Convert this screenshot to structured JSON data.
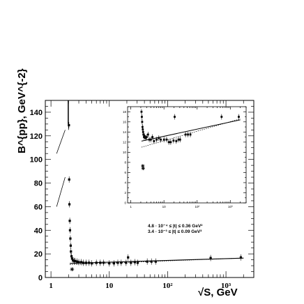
{
  "chart_data": [
    {
      "type": "scatter",
      "title": "",
      "ylabel": "B^{pp}, GeV^{-2}",
      "xlabel": "√S, GeV",
      "xscale": "log",
      "xlim": [
        0.8,
        3000
      ],
      "ylim": [
        0,
        150
      ],
      "y_ticks": [
        "0",
        "20",
        "40",
        "60",
        "80",
        "100",
        "120",
        "140"
      ],
      "x_ticks": [
        "1",
        "10",
        "10²",
        "10³"
      ],
      "grid": false,
      "legend_position": "lower-right (inside plot)",
      "series": [
        {
          "marker": "filled-square",
          "x": [
            2.03,
            2.05,
            2.07,
            2.1,
            2.12,
            2.15,
            2.18,
            2.2,
            2.25,
            2.3,
            2.4,
            2.5,
            2.6,
            2.8,
            3.0,
            3.3,
            3.6,
            4.0,
            4.5,
            5.0,
            6.0,
            7.0,
            8.0,
            10.0,
            12.0,
            14.0,
            16.0,
            19.4,
            21.0,
            23.5,
            27.4,
            30.6,
            44.7,
            52.8,
            62.5,
            546,
            1800
          ],
          "y": [
            129,
            83,
            62,
            48,
            40,
            33,
            27,
            22,
            18,
            16,
            14.5,
            14,
            14,
            13.5,
            13,
            13,
            12.5,
            12.5,
            12.5,
            12,
            12.5,
            12.5,
            12.5,
            12,
            12,
            12.5,
            12.5,
            12.5,
            17,
            12.5,
            13,
            12.5,
            13.5,
            13.5,
            13.5,
            16.5,
            17
          ]
        },
        {
          "marker": "asterisk",
          "x": [
            2.3
          ],
          "y": [
            7
          ]
        }
      ],
      "fits": [
        {
          "style": "solid",
          "x": [
            2.1,
            2000
          ],
          "y": [
            12.0,
            16.4
          ]
        },
        {
          "style": "dotted",
          "x": [
            2.1,
            2000
          ],
          "y": [
            11.0,
            16.5
          ]
        },
        {
          "style": "thin-solid",
          "x": [
            1.25,
            1.75
          ],
          "y": [
            60,
            85
          ]
        },
        {
          "style": "thin-solid",
          "x": [
            1.25,
            1.75
          ],
          "y": [
            105,
            125
          ]
        }
      ],
      "legend": [
        {
          "text": "4.8 · 10⁻⁴ ≤ |t| ≤ 0.36 GeV²"
        },
        {
          "text": "3.4 · 10⁻³ ≤ |t| ≤ 0.09 GeV²"
        }
      ]
    },
    {
      "type": "scatter",
      "title": "",
      "xscale": "log",
      "xlim": [
        0.8,
        3000
      ],
      "ylim": [
        0,
        19
      ],
      "y_ticks": [
        "0",
        "2",
        "4",
        "6",
        "8",
        "10",
        "12",
        "14",
        "16",
        "18"
      ],
      "x_ticks": [
        "1",
        "10",
        "10²",
        "10³"
      ],
      "series": [
        {
          "marker": "filled-square",
          "x": [
            2.1,
            2.15,
            2.2,
            2.25,
            2.3,
            2.35,
            2.4,
            2.5,
            2.6,
            2.8,
            3.0,
            3.3,
            3.6,
            4.0,
            4.5,
            5.0,
            6.0,
            7.0,
            8.0,
            10.0,
            12.0,
            14.0,
            16.0,
            19.4,
            21.0,
            23.5,
            27.4,
            30.6,
            44.7,
            52.8,
            62.5,
            546,
            1800
          ],
          "y": [
            18,
            17,
            16,
            15,
            14.5,
            14,
            13.5,
            13,
            13.2,
            12.8,
            13,
            13.5,
            12.5,
            12.5,
            13,
            12.2,
            12.5,
            12.8,
            12.5,
            12.5,
            12.5,
            12,
            12,
            12.3,
            17,
            12.2,
            12.5,
            12.5,
            13.5,
            13.5,
            13.5,
            17,
            17
          ]
        },
        {
          "marker": "asterisk",
          "x": [
            2.3,
            2.35
          ],
          "y": [
            7.3,
            6.8
          ]
        }
      ],
      "fits": [
        {
          "style": "solid",
          "x": [
            2.1,
            2000
          ],
          "y": [
            12.2,
            16.4
          ]
        },
        {
          "style": "dotted",
          "x": [
            2.1,
            2000
          ],
          "y": [
            11.0,
            16.6
          ]
        }
      ]
    }
  ]
}
